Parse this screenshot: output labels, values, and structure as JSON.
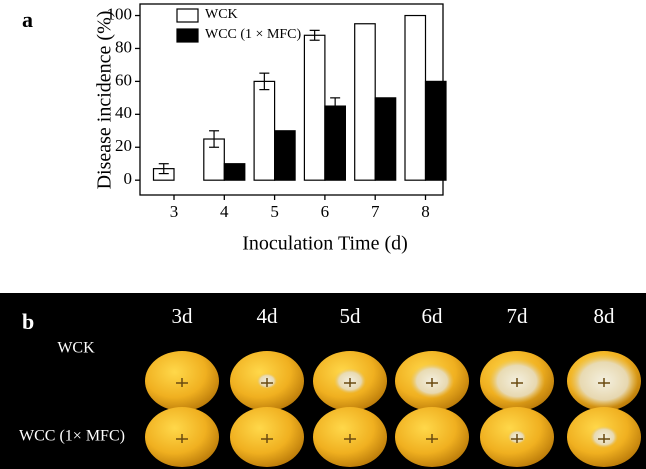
{
  "chart_data": {
    "type": "bar",
    "panel_label": "a",
    "x_label": "Inoculation Time (d)",
    "y_label": "Disease incidence (%)",
    "categories": [
      "3",
      "4",
      "5",
      "6",
      "7",
      "8"
    ],
    "series": [
      {
        "name": "WCK",
        "color": "#ffffff",
        "values": [
          7,
          25,
          60,
          88,
          95,
          100
        ],
        "errors": [
          3,
          5,
          5,
          3,
          null,
          null
        ]
      },
      {
        "name": "WCC (1 × MFC)",
        "color": "#000000",
        "values": [
          0,
          10,
          30,
          45,
          50,
          60
        ],
        "errors": [
          null,
          null,
          null,
          5,
          null,
          null
        ]
      }
    ],
    "ylim": [
      -9,
      107
    ],
    "yticks": [
      0,
      20,
      40,
      60,
      80,
      100
    ],
    "legend": "upper-left"
  },
  "photo": {
    "panel_label": "b",
    "days": [
      "3d",
      "4d",
      "5d",
      "6d",
      "7d",
      "8d"
    ],
    "rows": [
      "WCK",
      "WCC (1× MFC)"
    ]
  }
}
